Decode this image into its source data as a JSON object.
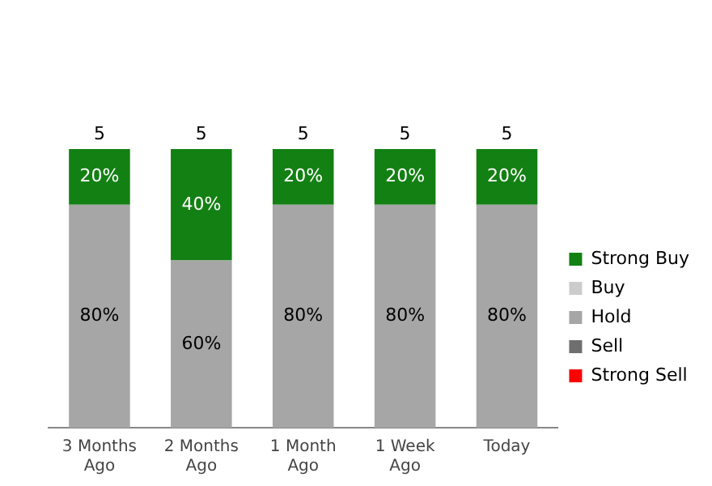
{
  "chart_data": {
    "type": "bar",
    "stacked": true,
    "categories": [
      "3 Months Ago",
      "2 Months Ago",
      "1 Month Ago",
      "1 Week Ago",
      "Today"
    ],
    "series": [
      {
        "name": "Strong Sell",
        "color": "#ff0000",
        "values": [
          null,
          null,
          null,
          null,
          null
        ]
      },
      {
        "name": "Sell",
        "color": "#6f6f6f",
        "values": [
          null,
          null,
          null,
          null,
          null
        ]
      },
      {
        "name": "Hold",
        "color": "#a6a6a6",
        "values": [
          80,
          60,
          80,
          80,
          80
        ],
        "value_labels": [
          "80%",
          "60%",
          "80%",
          "80%",
          "80%"
        ]
      },
      {
        "name": "Buy",
        "color": "#cccccc",
        "values": [
          null,
          null,
          null,
          null,
          null
        ]
      },
      {
        "name": "Strong Buy",
        "color": "#138013",
        "values": [
          20,
          40,
          20,
          20,
          20
        ],
        "value_labels": [
          "20%",
          "40%",
          "20%",
          "20%",
          "20%"
        ]
      }
    ],
    "annotations": [
      {
        "text": "5",
        "x": "3 Months Ago",
        "y": 100
      },
      {
        "text": "5",
        "x": "2 Months Ago",
        "y": 100
      },
      {
        "text": "5",
        "x": "1 Month Ago",
        "y": 100
      },
      {
        "text": "5",
        "x": "1 Week Ago",
        "y": 100
      },
      {
        "text": "5",
        "x": "Today",
        "y": 100
      }
    ],
    "legend": "right"
  }
}
